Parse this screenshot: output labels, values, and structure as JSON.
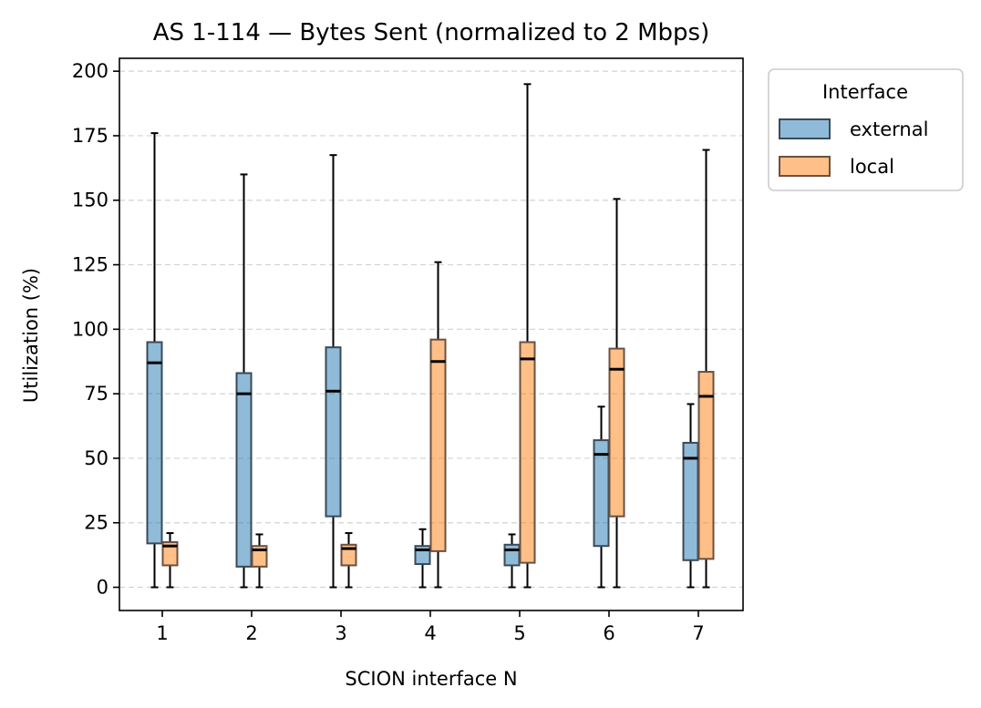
{
  "chart_data": {
    "type": "box",
    "title": "AS 1-114 — Bytes Sent (normalized to 2 Mbps)",
    "xlabel": "SCION interface N",
    "ylabel": "Utilization (%)",
    "categories": [
      "1",
      "2",
      "3",
      "4",
      "5",
      "6",
      "7"
    ],
    "ylim": [
      -9,
      205
    ],
    "yticks": [
      0,
      25,
      50,
      75,
      100,
      125,
      150,
      175,
      200
    ],
    "grid": "y-dashed",
    "legend": {
      "title": "Interface",
      "placement": "outside-top-right",
      "entries": [
        "external",
        "local"
      ]
    },
    "colors": {
      "external": "#1f77b4",
      "local": "#ff7f0e"
    },
    "series": [
      {
        "name": "external",
        "boxes": [
          {
            "whisker_low": 0,
            "q1": 17,
            "median": 87,
            "q3": 95,
            "whisker_high": 176
          },
          {
            "whisker_low": 0,
            "q1": 8,
            "median": 75,
            "q3": 83,
            "whisker_high": 160
          },
          {
            "whisker_low": 0,
            "q1": 27.5,
            "median": 76,
            "q3": 93,
            "whisker_high": 167.5
          },
          {
            "whisker_low": 0,
            "q1": 9,
            "median": 14.5,
            "q3": 16,
            "whisker_high": 22.5
          },
          {
            "whisker_low": 0,
            "q1": 8.5,
            "median": 14.5,
            "q3": 16.5,
            "whisker_high": 20.5
          },
          {
            "whisker_low": 0,
            "q1": 16,
            "median": 51.5,
            "q3": 57,
            "whisker_high": 70
          },
          {
            "whisker_low": 0,
            "q1": 10.5,
            "median": 50,
            "q3": 56,
            "whisker_high": 71
          }
        ]
      },
      {
        "name": "local",
        "boxes": [
          {
            "whisker_low": 0,
            "q1": 8.5,
            "median": 16,
            "q3": 17.5,
            "whisker_high": 21
          },
          {
            "whisker_low": 0,
            "q1": 8,
            "median": 14.5,
            "q3": 16,
            "whisker_high": 20.5
          },
          {
            "whisker_low": 0,
            "q1": 8.5,
            "median": 15,
            "q3": 16.5,
            "whisker_high": 21
          },
          {
            "whisker_low": 0,
            "q1": 14,
            "median": 87.5,
            "q3": 96,
            "whisker_high": 126
          },
          {
            "whisker_low": 0,
            "q1": 9.5,
            "median": 88.5,
            "q3": 95,
            "whisker_high": 195
          },
          {
            "whisker_low": 0,
            "q1": 27.5,
            "median": 84.5,
            "q3": 92.5,
            "whisker_high": 150.5
          },
          {
            "whisker_low": 0,
            "q1": 11,
            "median": 74,
            "q3": 83.5,
            "whisker_high": 169.5
          }
        ]
      }
    ]
  }
}
